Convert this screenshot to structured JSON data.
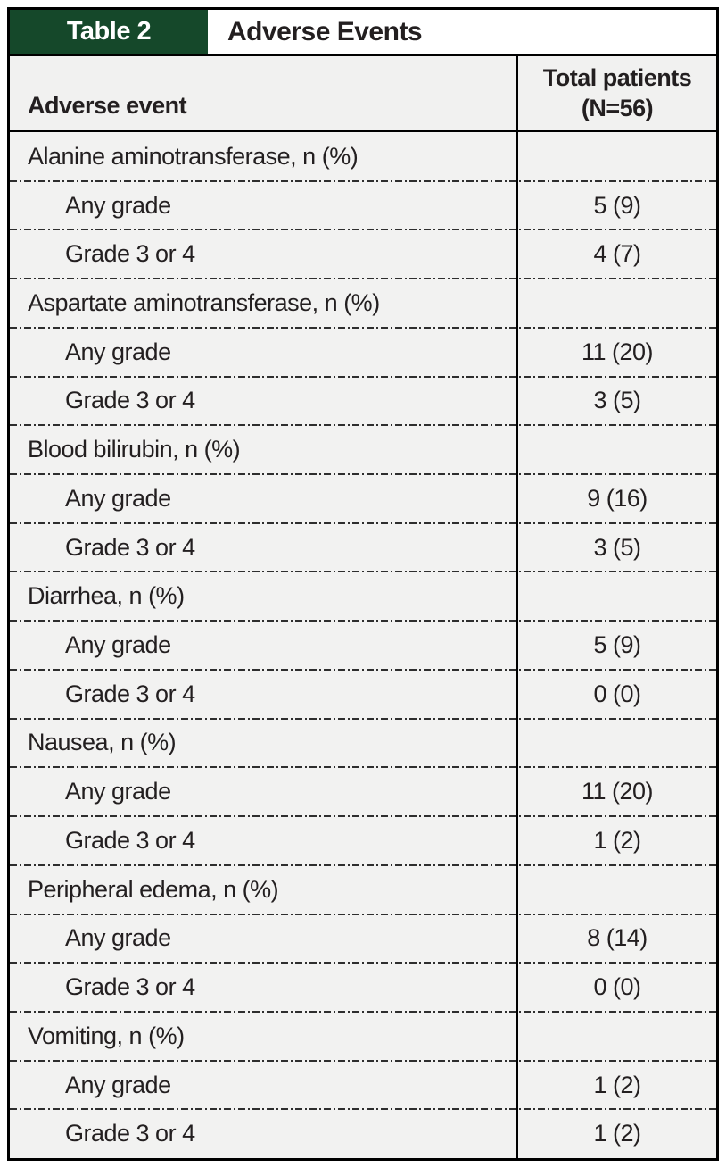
{
  "title_bar": {
    "tag": "Table 2",
    "title": "Adverse Events"
  },
  "header": {
    "event_column": "Adverse event",
    "total_column_line1": "Total patients",
    "total_column_line2": "(N=56)"
  },
  "table": {
    "sections": [
      {
        "category": "Alanine aminotransferase, n (%)",
        "rows": [
          {
            "label": "Any grade",
            "value": "5 (9)"
          },
          {
            "label": "Grade 3 or 4",
            "value": "4 (7)"
          }
        ]
      },
      {
        "category": "Aspartate aminotransferase, n (%)",
        "rows": [
          {
            "label": "Any grade",
            "value": "11 (20)"
          },
          {
            "label": "Grade 3 or 4",
            "value": "3 (5)"
          }
        ]
      },
      {
        "category": "Blood bilirubin, n (%)",
        "rows": [
          {
            "label": "Any grade",
            "value": "9 (16)"
          },
          {
            "label": "Grade 3 or 4",
            "value": "3 (5)"
          }
        ]
      },
      {
        "category": "Diarrhea, n (%)",
        "rows": [
          {
            "label": "Any grade",
            "value": "5 (9)"
          },
          {
            "label": "Grade 3 or 4",
            "value": "0 (0)"
          }
        ]
      },
      {
        "category": "Nausea, n (%)",
        "rows": [
          {
            "label": "Any grade",
            "value": "11 (20)"
          },
          {
            "label": "Grade 3 or 4",
            "value": "1 (2)"
          }
        ]
      },
      {
        "category": "Peripheral edema, n (%)",
        "rows": [
          {
            "label": "Any grade",
            "value": "8 (14)"
          },
          {
            "label": "Grade 3 or 4",
            "value": "0 (0)"
          }
        ]
      },
      {
        "category": "Vomiting, n (%)",
        "rows": [
          {
            "label": "Any grade",
            "value": "1 (2)"
          },
          {
            "label": "Grade 3 or 4",
            "value": "1 (2)"
          }
        ]
      }
    ]
  },
  "colors": {
    "accent_green": "#15482a",
    "row_background": "#f2f2f1",
    "text": "#231f20",
    "border": "#000000"
  }
}
